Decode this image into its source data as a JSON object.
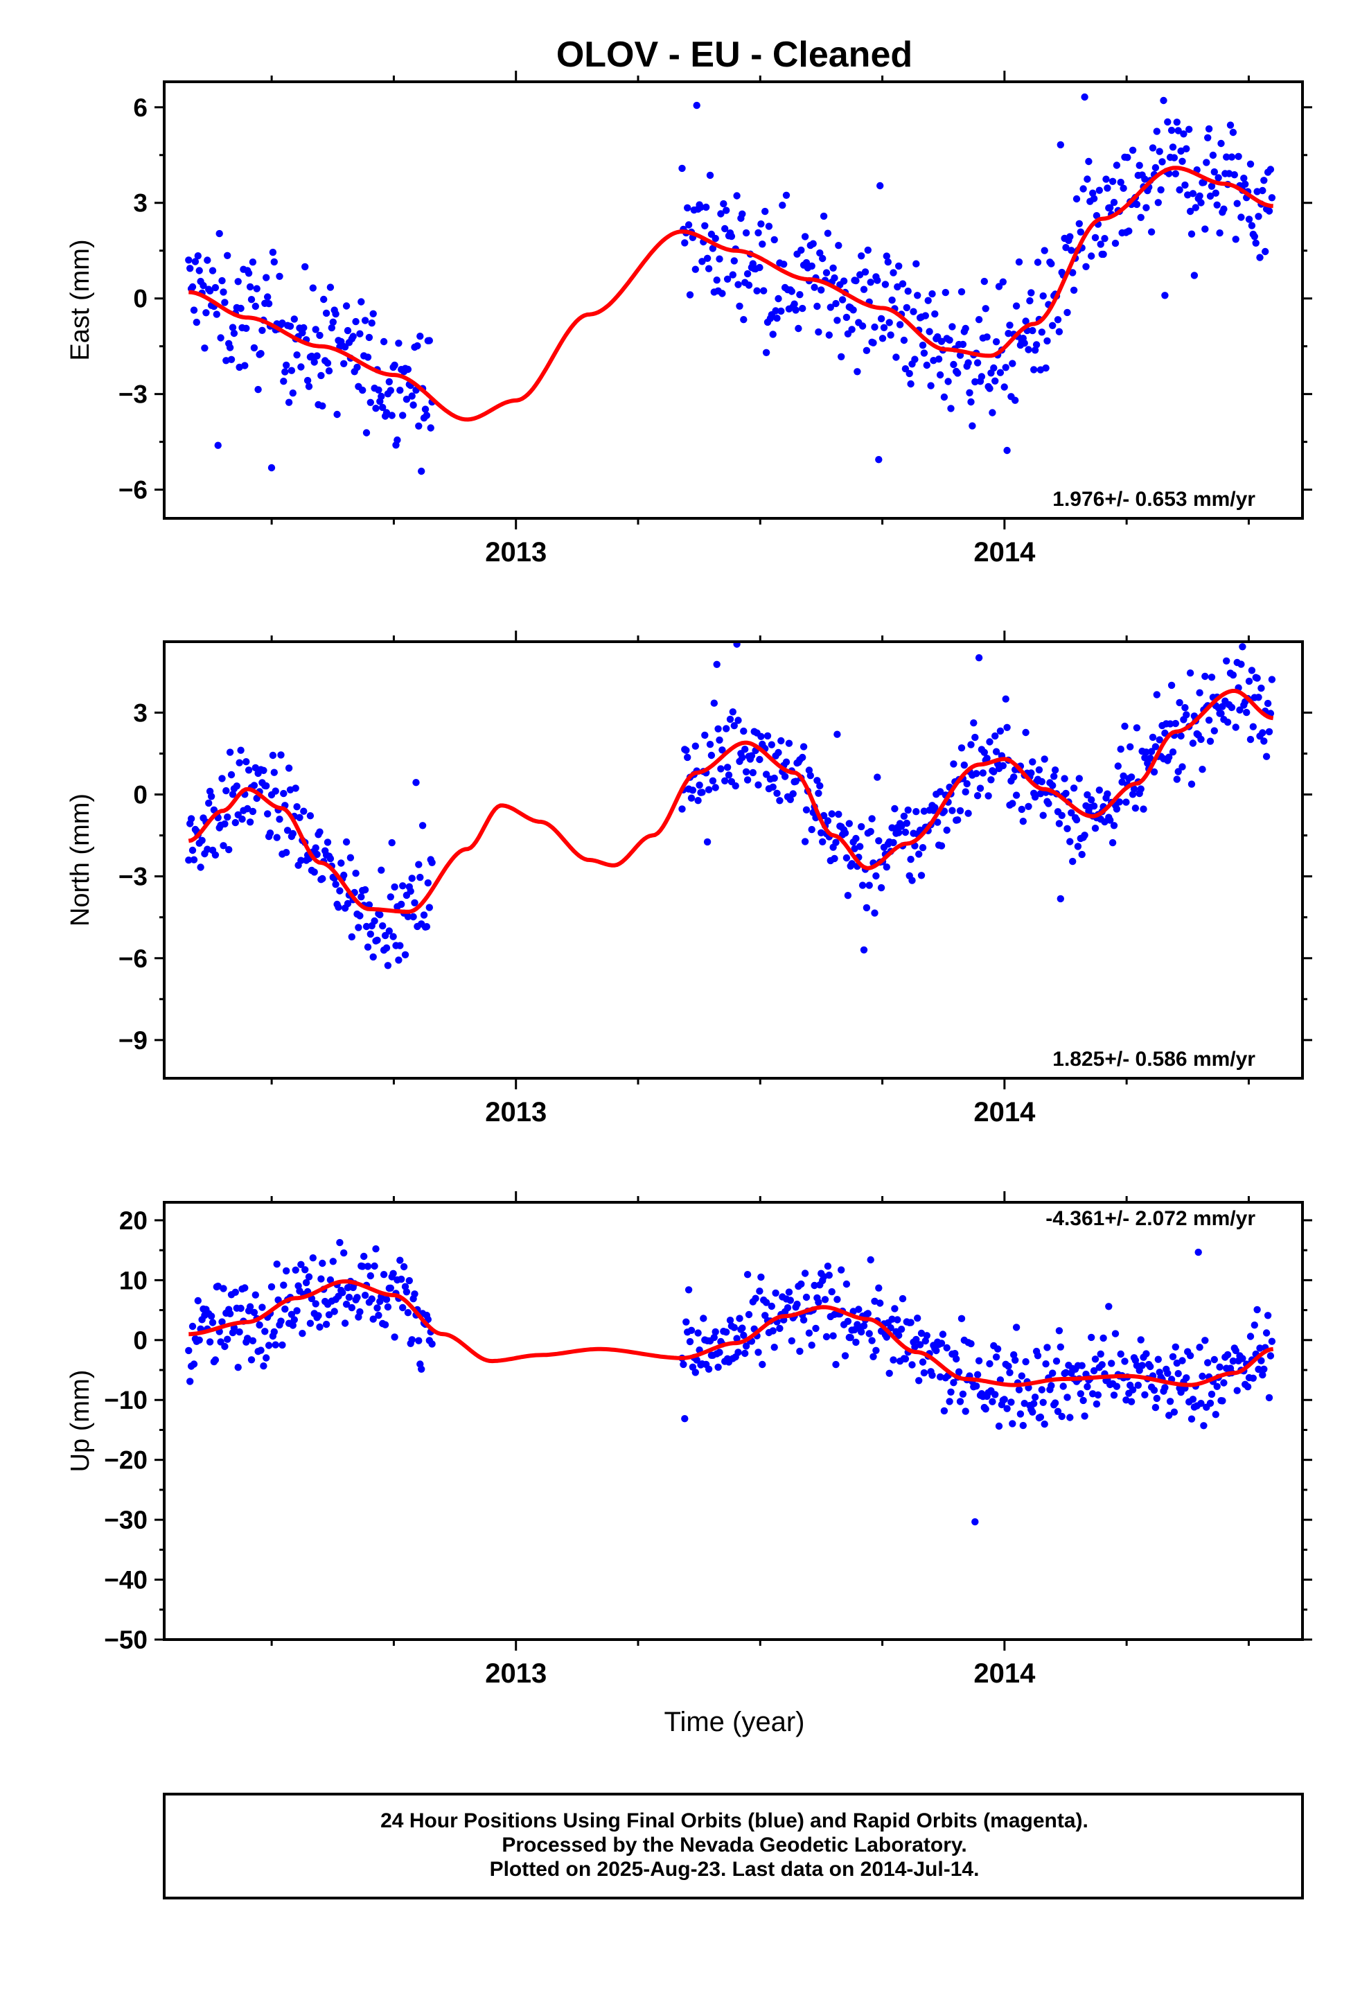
{
  "title": "OLOV  - EU - Cleaned",
  "colors": {
    "points": "#0000ff",
    "fit": "#ff0000",
    "frame": "#000000"
  },
  "xlabel": "Time (year)",
  "footer": [
    "24 Hour Positions Using Final Orbits (blue) and Rapid Orbits (magenta).",
    "Processed by the Nevada Geodetic Laboratory.",
    "Plotted on 2025-Aug-23. Last data on 2014-Jul-14."
  ],
  "chart_data": [
    {
      "type": "scatter",
      "name": "east",
      "ylabel": "East (mm)",
      "rate": "1.976+/- 0.653 mm/yr",
      "xlim": [
        2012.28,
        2014.61
      ],
      "ylim": [
        -6.9,
        6.8
      ],
      "yticks": [
        6,
        3,
        0,
        -3,
        -6
      ],
      "xticks": [
        2013,
        2014
      ],
      "segments": [
        [
          2012.33,
          2012.83
        ],
        [
          2013.34,
          2014.55
        ]
      ],
      "fit": [
        [
          2012.33,
          0.2
        ],
        [
          2012.45,
          -0.6
        ],
        [
          2012.6,
          -1.5
        ],
        [
          2012.75,
          -2.4
        ],
        [
          2012.9,
          -3.8
        ],
        [
          2013.0,
          -3.2
        ],
        [
          2013.15,
          -0.5
        ],
        [
          2013.34,
          2.1
        ],
        [
          2013.45,
          1.5
        ],
        [
          2013.6,
          0.6
        ],
        [
          2013.75,
          -0.3
        ],
        [
          2013.88,
          -1.6
        ],
        [
          2013.97,
          -1.8
        ],
        [
          2014.06,
          -0.8
        ],
        [
          2014.2,
          2.5
        ],
        [
          2014.35,
          4.1
        ],
        [
          2014.45,
          3.6
        ],
        [
          2014.55,
          2.9
        ]
      ],
      "scatter": 1.4
    },
    {
      "type": "scatter",
      "name": "north",
      "ylabel": "North (mm)",
      "rate": "1.825+/- 0.586 mm/yr",
      "xlim": [
        2012.28,
        2014.61
      ],
      "ylim": [
        -10.4,
        5.6
      ],
      "yticks": [
        3,
        0,
        -3,
        -6,
        -9
      ],
      "xticks": [
        2013,
        2014
      ],
      "segments": [
        [
          2012.33,
          2012.83
        ],
        [
          2013.34,
          2014.55
        ]
      ],
      "fit": [
        [
          2012.33,
          -1.7
        ],
        [
          2012.4,
          -0.6
        ],
        [
          2012.45,
          0.2
        ],
        [
          2012.52,
          -0.5
        ],
        [
          2012.6,
          -2.5
        ],
        [
          2012.7,
          -4.2
        ],
        [
          2012.78,
          -4.3
        ],
        [
          2012.9,
          -2.0
        ],
        [
          2012.97,
          -0.4
        ],
        [
          2013.05,
          -1.0
        ],
        [
          2013.15,
          -2.4
        ],
        [
          2013.2,
          -2.6
        ],
        [
          2013.28,
          -1.5
        ],
        [
          2013.37,
          0.8
        ],
        [
          2013.47,
          1.9
        ],
        [
          2013.57,
          0.8
        ],
        [
          2013.65,
          -1.5
        ],
        [
          2013.72,
          -2.7
        ],
        [
          2013.8,
          -1.8
        ],
        [
          2013.95,
          1.1
        ],
        [
          2014.0,
          1.3
        ],
        [
          2014.08,
          0.2
        ],
        [
          2014.18,
          -0.8
        ],
        [
          2014.27,
          0.4
        ],
        [
          2014.35,
          2.3
        ],
        [
          2014.47,
          3.8
        ],
        [
          2014.55,
          2.8
        ]
      ],
      "scatter": 1.2
    },
    {
      "type": "scatter",
      "name": "up",
      "ylabel": "Up (mm)",
      "rate": "-4.361+/- 2.072 mm/yr",
      "xlim": [
        2012.28,
        2014.61
      ],
      "ylim": [
        -50,
        23
      ],
      "yticks": [
        20,
        10,
        0,
        -10,
        -20,
        -30,
        -40,
        -50
      ],
      "xticks": [
        2013,
        2014
      ],
      "segments": [
        [
          2012.33,
          2012.83
        ],
        [
          2013.34,
          2014.55
        ]
      ],
      "fit": [
        [
          2012.33,
          1.0
        ],
        [
          2012.45,
          3.0
        ],
        [
          2012.55,
          7.0
        ],
        [
          2012.65,
          9.8
        ],
        [
          2012.75,
          7.5
        ],
        [
          2012.85,
          1.0
        ],
        [
          2012.95,
          -3.5
        ],
        [
          2013.05,
          -2.5
        ],
        [
          2013.17,
          -1.5
        ],
        [
          2013.34,
          -3.0
        ],
        [
          2013.45,
          -0.5
        ],
        [
          2013.55,
          4.0
        ],
        [
          2013.63,
          5.5
        ],
        [
          2013.72,
          3.5
        ],
        [
          2013.82,
          -2.0
        ],
        [
          2013.92,
          -6.5
        ],
        [
          2014.02,
          -7.5
        ],
        [
          2014.12,
          -6.5
        ],
        [
          2014.25,
          -6.0
        ],
        [
          2014.38,
          -7.5
        ],
        [
          2014.47,
          -5.5
        ],
        [
          2014.55,
          -1.5
        ]
      ],
      "scatter": 5.0
    }
  ]
}
